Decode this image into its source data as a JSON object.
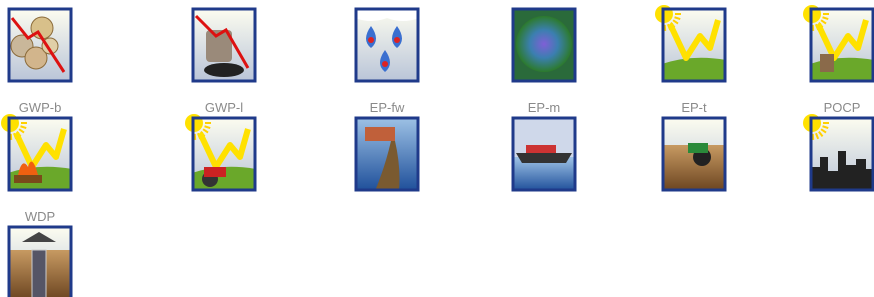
{
  "icons": [
    {
      "label": "GWP-b"
    },
    {
      "label": "GWP-l"
    },
    {
      "label": "EP-fw"
    },
    {
      "label": "EP-m"
    },
    {
      "label": "EP-t"
    },
    {
      "label": "POCP"
    },
    {
      "label": "WDP"
    }
  ]
}
